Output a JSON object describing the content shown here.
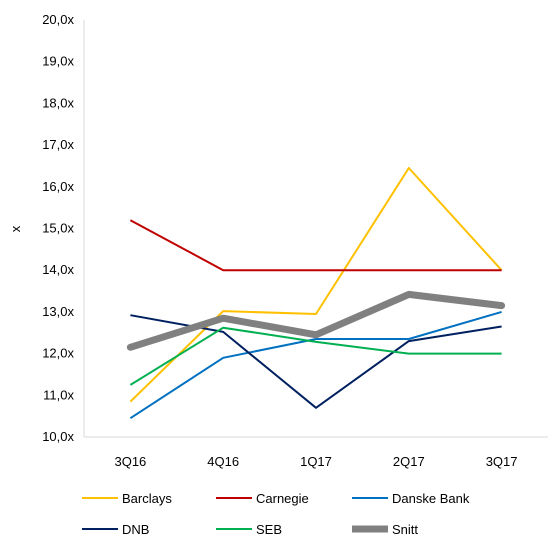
{
  "chart_data": {
    "type": "line",
    "title": "",
    "xlabel": "",
    "ylabel": "x",
    "categories": [
      "3Q16",
      "4Q16",
      "1Q17",
      "2Q17",
      "3Q17"
    ],
    "ylim": [
      10.0,
      20.0
    ],
    "yticks": [
      "10,0x",
      "11,0x",
      "12,0x",
      "13,0x",
      "14,0x",
      "15,0x",
      "16,0x",
      "17,0x",
      "18,0x",
      "19,0x",
      "20,0x"
    ],
    "grid": false,
    "legend_position": "bottom",
    "series": [
      {
        "name": "Barclays",
        "color": "#FFC000",
        "width": "thin",
        "values": [
          10.85,
          13.02,
          12.95,
          16.45,
          14.0
        ]
      },
      {
        "name": "Carnegie",
        "color": "#C00000",
        "width": "thin",
        "values": [
          15.2,
          14.0,
          14.0,
          14.0,
          14.0
        ]
      },
      {
        "name": "Danske Bank",
        "color": "#0070C0",
        "width": "thin",
        "values": [
          10.45,
          11.9,
          12.35,
          12.35,
          13.0
        ]
      },
      {
        "name": "DNB",
        "color": "#002060",
        "width": "thin",
        "values": [
          12.92,
          12.52,
          10.7,
          12.3,
          12.65
        ]
      },
      {
        "name": "SEB",
        "color": "#00B050",
        "width": "thin",
        "values": [
          11.25,
          12.62,
          12.28,
          12.0,
          12.0
        ]
      },
      {
        "name": "Snitt",
        "color": "#808080",
        "width": "thick",
        "values": [
          12.15,
          12.85,
          12.45,
          13.42,
          13.15
        ]
      }
    ]
  }
}
